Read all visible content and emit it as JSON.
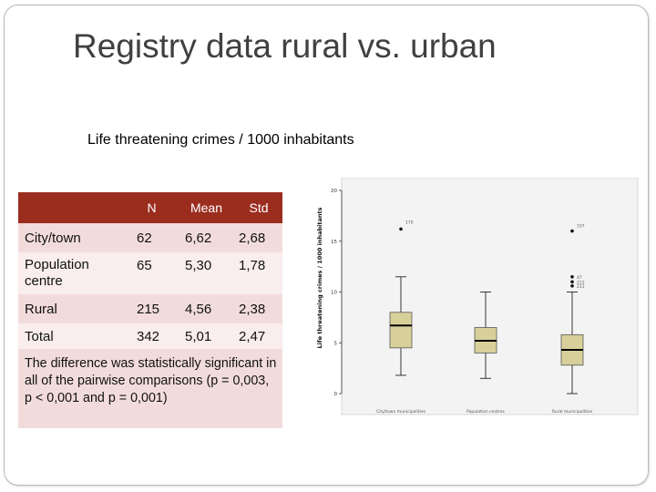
{
  "slide": {
    "title": "Registry data rural vs. urban",
    "subtitle": "Life threatening crimes / 1000 inhabitants",
    "note": "The difference was statistically significant in all of the pairwise comparisons (p = 0,003, p < 0,001 and p = 0,001)"
  },
  "table": {
    "headers": [
      "",
      "N",
      "Mean",
      "Std"
    ],
    "rows": [
      {
        "label": "City/town",
        "n": "62",
        "mean": "6,62",
        "std": "2,68"
      },
      {
        "label": "Population centre",
        "n": "65",
        "mean": "5,30",
        "std": "1,78"
      },
      {
        "label": "Rural",
        "n": "215",
        "mean": "4,56",
        "std": "2,38"
      },
      {
        "label": "Total",
        "n": "342",
        "mean": "5,01",
        "std": "2,47"
      }
    ],
    "header_color": "#9b2d1f",
    "row_colors": [
      "#f2dcdb",
      "#f9eded"
    ]
  },
  "chart_data": {
    "type": "boxplot",
    "ylabel": "Life threatening crimes / 1000 inhabitants",
    "ylim": [
      0,
      20
    ],
    "yticks": [
      0,
      5,
      10,
      15,
      20
    ],
    "ytick_labels": [
      "0",
      "5",
      "10",
      "15",
      "20"
    ],
    "categories": [
      "City/town municipalities",
      "Population centres",
      "Rural municipalities"
    ],
    "boxes": [
      {
        "min": 1.8,
        "q1": 4.5,
        "median": 6.7,
        "q3": 8.0,
        "max": 11.5,
        "outliers": [
          {
            "value": 16.2,
            "label": "170"
          }
        ]
      },
      {
        "min": 1.5,
        "q1": 4.0,
        "median": 5.2,
        "q3": 6.5,
        "max": 10.0,
        "outliers": []
      },
      {
        "min": 0.0,
        "q1": 2.8,
        "median": 4.3,
        "q3": 5.8,
        "max": 10.0,
        "outliers": [
          {
            "value": 16.0,
            "label": "337"
          },
          {
            "value": 11.5,
            "label": "47"
          },
          {
            "value": 11.0,
            "label": "212"
          },
          {
            "value": 10.6,
            "label": "211"
          }
        ]
      }
    ],
    "box_color": "#d8d09a",
    "grid": false
  }
}
